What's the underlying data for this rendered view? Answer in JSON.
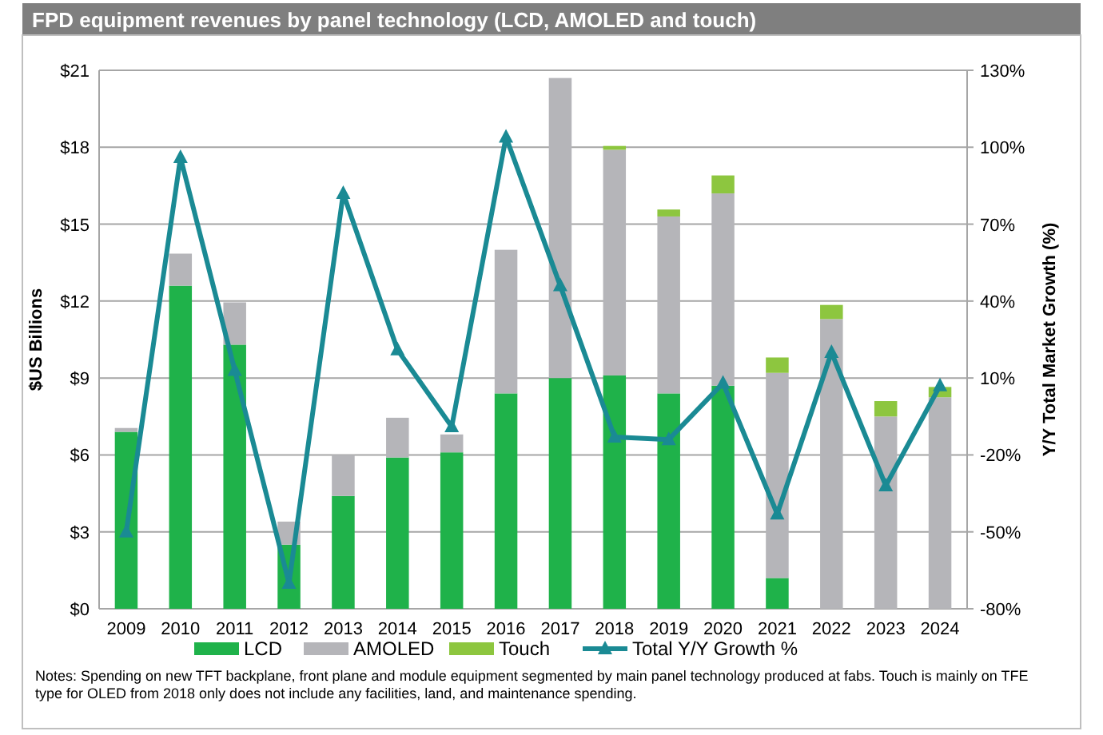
{
  "chart_data": {
    "type": "bar",
    "title": "FPD equipment revenues by panel technology (LCD, AMOLED and touch)",
    "categories": [
      "2009",
      "2010",
      "2011",
      "2012",
      "2013",
      "2014",
      "2015",
      "2016",
      "2017",
      "2018",
      "2019",
      "2020",
      "2021",
      "2022",
      "2023",
      "2024"
    ],
    "stacked": true,
    "series": [
      {
        "name": "LCD",
        "color": "#1fb24a",
        "values": [
          6.9,
          12.6,
          10.3,
          2.5,
          4.4,
          5.9,
          6.1,
          8.4,
          9.0,
          9.1,
          8.4,
          8.7,
          1.2,
          0,
          0,
          0
        ]
      },
      {
        "name": "AMOLED",
        "color": "#b5b5b9",
        "values": [
          0.15,
          1.25,
          1.65,
          0.9,
          1.6,
          1.55,
          0.7,
          5.6,
          11.7,
          8.8,
          6.9,
          7.5,
          8.0,
          11.3,
          7.5,
          8.25
        ]
      },
      {
        "name": "Touch",
        "color": "#8dc63f",
        "values": [
          0,
          0,
          0,
          0,
          0,
          0,
          0,
          0,
          0,
          0.15,
          0.27,
          0.7,
          0.6,
          0.55,
          0.6,
          0.4
        ]
      },
      {
        "name": "Total Y/Y Growth %",
        "type": "line",
        "axis": "y2",
        "color": "#1a8a94",
        "marker": "triangle",
        "values": [
          -50,
          96,
          13,
          -70,
          82,
          21,
          -9,
          104,
          46,
          -13,
          -14,
          8,
          -43,
          20,
          -32,
          7
        ]
      }
    ],
    "ylabel": "$US Billions",
    "y2label": "Y/Y Total Market Growth (%)",
    "ylim": [
      0,
      21
    ],
    "yticks": [
      {
        "value": 0,
        "label": "$0"
      },
      {
        "value": 3,
        "label": "$3"
      },
      {
        "value": 6,
        "label": "$6"
      },
      {
        "value": 9,
        "label": "$9"
      },
      {
        "value": 12,
        "label": "$12"
      },
      {
        "value": 15,
        "label": "$15"
      },
      {
        "value": 18,
        "label": "$18"
      },
      {
        "value": 21,
        "label": "$21"
      }
    ],
    "y2lim": [
      -80,
      130
    ],
    "y2ticks": [
      {
        "value": -80,
        "label": "-80%"
      },
      {
        "value": -50,
        "label": "-50%"
      },
      {
        "value": -20,
        "label": "-20%"
      },
      {
        "value": 10,
        "label": "10%"
      },
      {
        "value": 40,
        "label": "40%"
      },
      {
        "value": 70,
        "label": "70%"
      },
      {
        "value": 100,
        "label": "100%"
      },
      {
        "value": 130,
        "label": "130%"
      }
    ],
    "grid": "y",
    "legend": "bottom",
    "annotations": [
      "Notes: Spending on new TFT backplane, front plane and module equipment segmented by main panel technology produced at fabs. Touch is mainly on TFE type for OLED from 2018 only does not include any facilities, land, and maintenance spending."
    ]
  }
}
